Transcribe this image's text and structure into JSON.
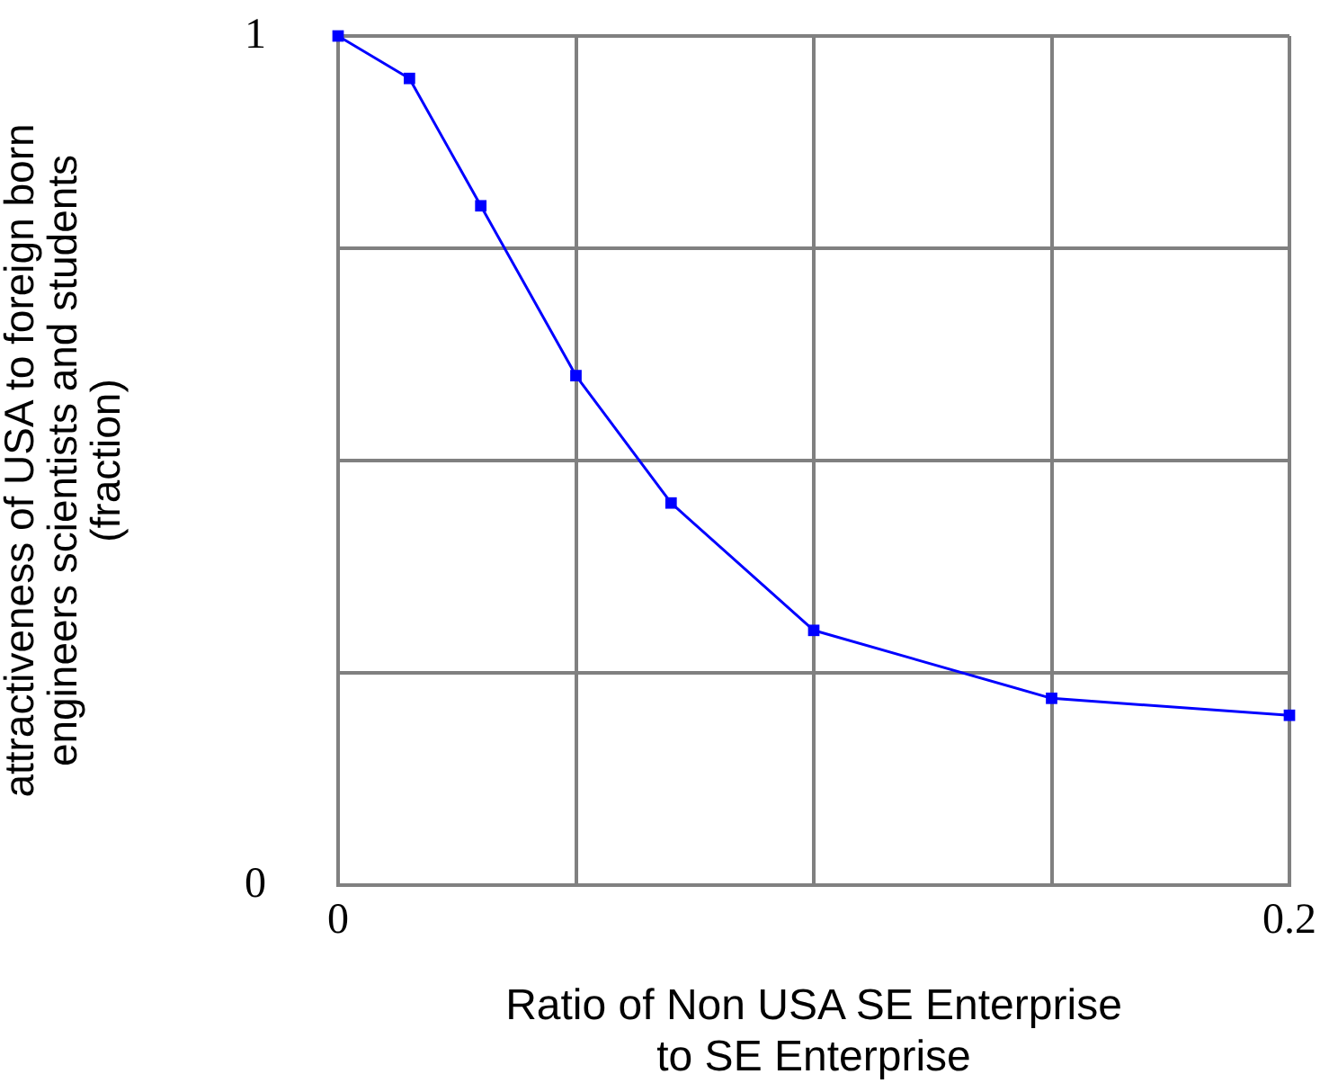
{
  "chart_data": {
    "type": "line",
    "xlabel": "Ratio of Non USA SE Enterprise\nto SE Enterprise",
    "ylabel": "attractiveness of USA to foreign born\nengineers scientists and students\n(fraction)",
    "x": [
      0,
      0.015,
      0.03,
      0.05,
      0.07,
      0.1,
      0.15,
      0.2
    ],
    "series": [
      {
        "color": "#0000ff",
        "values": [
          1,
          0.95,
          0.8,
          0.6,
          0.45,
          0.3,
          0.22,
          0.2
        ]
      }
    ],
    "xlim": [
      0,
      0.2
    ],
    "xticks": [
      0,
      {
        "value": 0.05,
        "label": null
      },
      {
        "value": 0.1,
        "label": null
      },
      {
        "value": 0.15,
        "label": null
      },
      0.2
    ],
    "ylim": [
      0,
      1
    ],
    "yticks": [
      0,
      {
        "value": 0.25,
        "label": null
      },
      {
        "value": 0.5,
        "label": null
      },
      {
        "value": 0.75,
        "label": null
      },
      1
    ],
    "grid": true,
    "legend": false,
    "marker": "square",
    "line_style": "solid"
  }
}
